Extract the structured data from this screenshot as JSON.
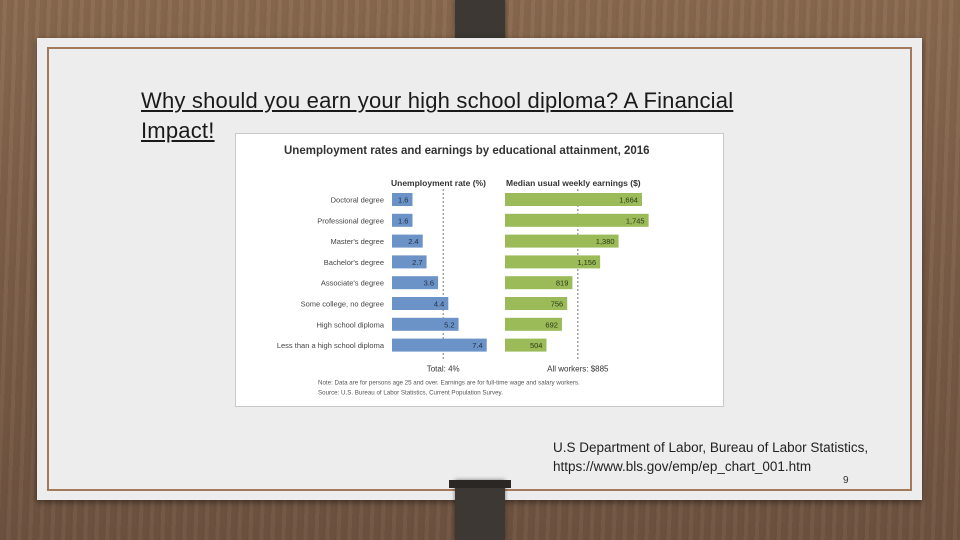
{
  "slide": {
    "title": "Why should you earn your high school diploma? A Financial Impact!",
    "source_line1": "U.S Department of Labor, Bureau of Labor Statistics,",
    "source_line2": "https://www.bls.gov/emp/ep_chart_001.htm",
    "page_number": "9"
  },
  "chart_data": {
    "type": "bar",
    "title": "Unemployment rates and earnings by educational attainment, 2016",
    "categories": [
      "Doctoral degree",
      "Professional degree",
      "Master's degree",
      "Bachelor's degree",
      "Associate's degree",
      "Some college, no degree",
      "High school diploma",
      "Less than a high school diploma"
    ],
    "series": [
      {
        "name": "Unemployment rate (%)",
        "values": [
          1.6,
          1.6,
          2.4,
          2.7,
          3.6,
          4.4,
          5.2,
          7.4
        ],
        "labels": [
          "1.6",
          "1.6",
          "2.4",
          "2.7",
          "3.6",
          "4.4",
          "5.2",
          "7.4"
        ],
        "color": "#6c93c7",
        "reference_label": "Total: 4%",
        "reference_value": 4.0
      },
      {
        "name": "Median usual weekly earnings ($)",
        "values": [
          1664,
          1745,
          1380,
          1156,
          819,
          756,
          692,
          504
        ],
        "labels": [
          "1,664",
          "1,745",
          "1,380",
          "1,156",
          "819",
          "756",
          "692",
          "504"
        ],
        "color": "#9bbb59",
        "reference_label": "All workers: $885",
        "reference_value": 885
      }
    ],
    "note": "Note: Data are for persons age 25 and over. Earnings are for full-time wage and salary workers.",
    "source": "Source: U.S. Bureau of Labor Statistics, Current Population Survey."
  }
}
